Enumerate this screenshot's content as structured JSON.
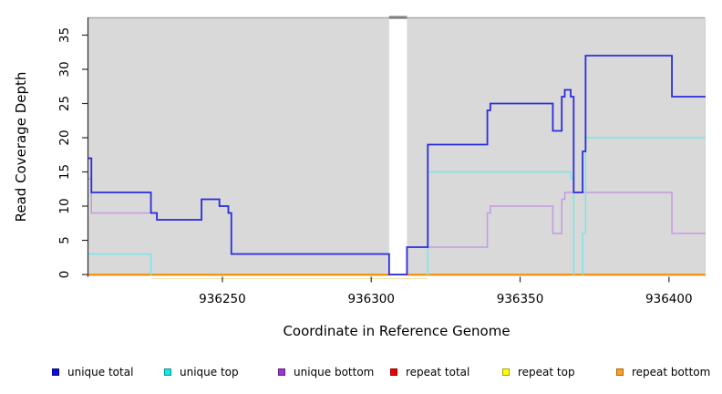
{
  "chart_data": {
    "type": "line",
    "subtype": "step-coverage-plot",
    "title": "",
    "xlabel": "Coordinate in Reference Genome",
    "ylabel": "Read Coverage Depth",
    "xlim": [
      936205,
      936412
    ],
    "ylim": [
      0,
      37
    ],
    "xticks": [
      936250,
      936300,
      936350,
      936400
    ],
    "yticks": [
      0,
      5,
      10,
      15,
      20,
      25,
      30,
      35
    ],
    "grid": false,
    "legend_position": "bottom",
    "plot_bg": "#d9d9d9",
    "gap_region": {
      "start": 936306,
      "end": 936312,
      "fill": "#ffffff",
      "cap_color": "#818181"
    },
    "zero_line_segments": [
      {
        "from": 936205,
        "to": 936226,
        "color": "#ff9200"
      },
      {
        "from": 936226,
        "to": 936319,
        "color": "#84ca84"
      },
      {
        "from": 936319,
        "to": 936412,
        "color": "#ff9200"
      }
    ],
    "sub_axis_line": {
      "from": 936226,
      "to": 936319,
      "color": "#ece5a8"
    },
    "series": [
      {
        "name": "repeat total",
        "line_color": "#dd0000",
        "legend_color": "#ee0000",
        "steps": [
          [
            936205,
            0
          ]
        ]
      },
      {
        "name": "repeat top",
        "line_color": "#f0e442",
        "legend_color": "#ffff05",
        "steps": [
          [
            936205,
            0
          ]
        ]
      },
      {
        "name": "repeat bottom",
        "line_color": "#ff9200",
        "legend_color": "#ffa01e",
        "steps": [
          [
            936205,
            0
          ]
        ]
      },
      {
        "name": "unique bottom",
        "line_color": "#c49ae2",
        "legend_color": "#9a35d2",
        "steps": [
          [
            936205,
            14
          ],
          [
            936206,
            9
          ],
          [
            936228,
            8
          ],
          [
            936243,
            11
          ],
          [
            936249,
            10
          ],
          [
            936252,
            9
          ],
          [
            936253,
            3
          ],
          [
            936306,
            0
          ],
          [
            936312,
            4
          ],
          [
            936339,
            9
          ],
          [
            936340,
            10
          ],
          [
            936361,
            6
          ],
          [
            936364,
            11
          ],
          [
            936365,
            12
          ],
          [
            936401,
            6
          ]
        ]
      },
      {
        "name": "unique top",
        "line_color": "#76e7e7",
        "legend_color": "#16e7e7",
        "skip_zero": true,
        "steps": [
          [
            936205,
            3
          ],
          [
            936226,
            0
          ],
          [
            936319,
            15
          ],
          [
            936367,
            14
          ],
          [
            936368,
            0
          ],
          [
            936371,
            6
          ],
          [
            936372,
            20
          ]
        ]
      },
      {
        "name": "unique total",
        "line_color": "#2c2cdb",
        "legend_color": "#0f0fd6",
        "steps": [
          [
            936205,
            17
          ],
          [
            936206,
            12
          ],
          [
            936226,
            9
          ],
          [
            936228,
            8
          ],
          [
            936243,
            11
          ],
          [
            936249,
            10
          ],
          [
            936252,
            9
          ],
          [
            936253,
            3
          ],
          [
            936306,
            0
          ],
          [
            936312,
            4
          ],
          [
            936319,
            19
          ],
          [
            936339,
            24
          ],
          [
            936340,
            25
          ],
          [
            936361,
            21
          ],
          [
            936364,
            26
          ],
          [
            936365,
            27
          ],
          [
            936367,
            26
          ],
          [
            936368,
            12
          ],
          [
            936371,
            18
          ],
          [
            936372,
            32
          ],
          [
            936401,
            26
          ]
        ]
      }
    ],
    "legend_order": [
      "unique total",
      "unique top",
      "unique bottom",
      "repeat total",
      "repeat top",
      "repeat bottom"
    ]
  }
}
